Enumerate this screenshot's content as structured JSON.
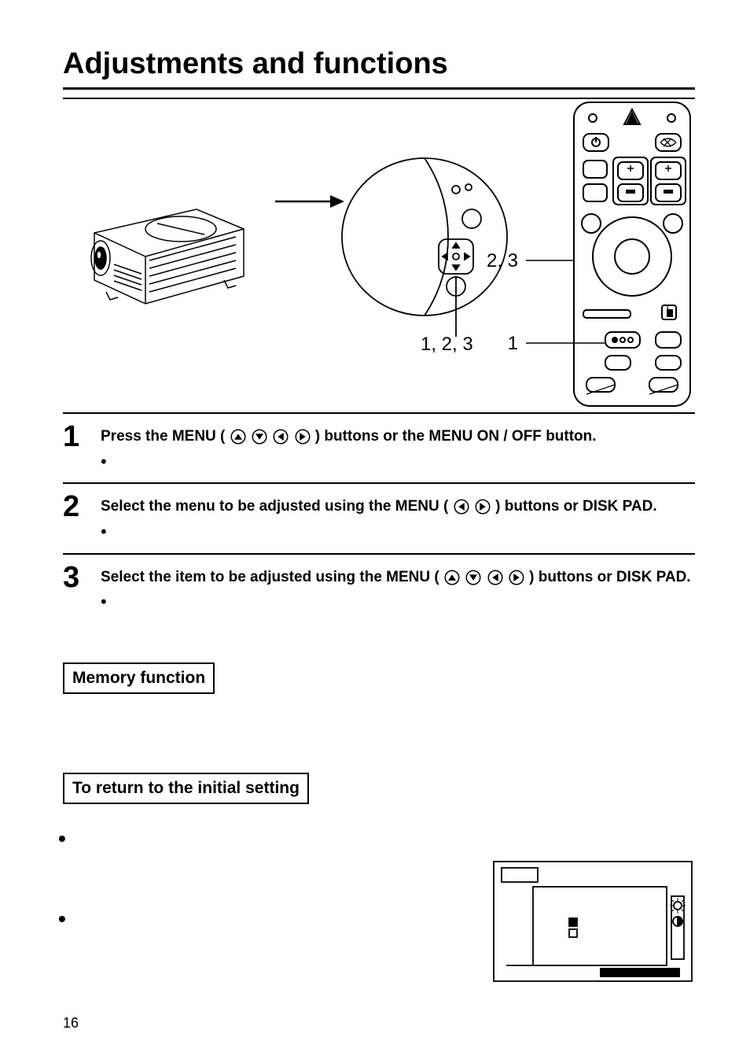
{
  "title": "Adjustments and functions",
  "callouts": {
    "topLabel": "2, 3",
    "bottomLabel": "1, 2, 3",
    "remoteBottom": "1"
  },
  "steps": [
    {
      "num": "1",
      "text_before": "Press the MENU ( ",
      "icons": [
        "up",
        "down",
        "left",
        "right"
      ],
      "text_after": " ) buttons or the MENU ON / OFF button.",
      "tail": ""
    },
    {
      "num": "2",
      "text_before": "Select the menu to be adjusted using the MENU ( ",
      "icons": [
        "left",
        "right"
      ],
      "text_after": " ) buttons or DISK PAD.",
      "tail": ""
    },
    {
      "num": "3",
      "text_before": "Select the item to be adjusted using the MENU ( ",
      "icons": [
        "up",
        "down",
        "left",
        "right"
      ],
      "text_after": " ) buttons or DISK PAD.",
      "tail": ""
    }
  ],
  "boxes": {
    "memory": "Memory function",
    "initial": "To return to the initial setting"
  },
  "pageNumber": "16",
  "style": {
    "stroke": "#000000",
    "bg": "#ffffff",
    "title_fontsize": 38,
    "body_fontsize": 19,
    "stepnum_fontsize": 38,
    "boxed_fontsize": 21,
    "callout_fontsize": 24
  }
}
